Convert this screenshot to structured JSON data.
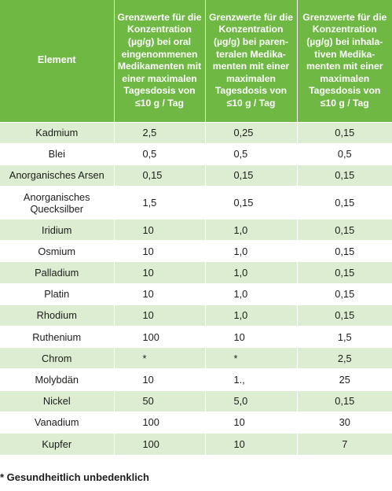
{
  "table": {
    "headers": [
      "Element",
      "Grenzwerte für die Konzentration (µg/g) bei oral eingenommenen Medikamenten mit einer maximalen Tagesdosis von ≤10 g / Tag",
      "Grenzwerte für die Konzentration (µg/g) bei paren­teralen Medika­menten mit einer maximalen Tagesdosis von ≤10 g / Tag",
      "Grenzwerte für die Konzentration (µg/g) bei inhala­tiven Medika­menten mit einer maximalen Tagesdosis von ≤10 g / Tag"
    ],
    "rows": [
      [
        "Kadmium",
        "2,5",
        "0,25",
        "0,15"
      ],
      [
        "Blei",
        "0,5",
        "0,5",
        "0,5"
      ],
      [
        "Anorganisches Arsen",
        "0,15",
        "0,15",
        "0,15"
      ],
      [
        "Anorganisches Quecksilber",
        "1,5",
        "0,15",
        "0,15"
      ],
      [
        "Iridium",
        "10",
        "1,0",
        "0,15"
      ],
      [
        "Osmium",
        "10",
        "1,0",
        "0,15"
      ],
      [
        "Palladium",
        "10",
        "1,0",
        "0,15"
      ],
      [
        "Platin",
        "10",
        "1,0",
        "0,15"
      ],
      [
        "Rhodium",
        "10",
        "1,0",
        "0,15"
      ],
      [
        "Ruthenium",
        "100",
        "10",
        "1,5"
      ],
      [
        "Chrom",
        "*",
        "*",
        "2,5"
      ],
      [
        "Molybdän",
        "10",
        "1.,",
        "25"
      ],
      [
        "Nickel",
        "50",
        "5,0",
        "0,15"
      ],
      [
        "Vanadium",
        "100",
        "10",
        "30"
      ],
      [
        "Kupfer",
        "100",
        "10",
        "7"
      ]
    ]
  },
  "footnote": "* Gesundheitlich unbedenklich",
  "colors": {
    "header_bg": "#6fb843",
    "row_alt": "#dcedd2",
    "text": "#1d1d1b"
  }
}
